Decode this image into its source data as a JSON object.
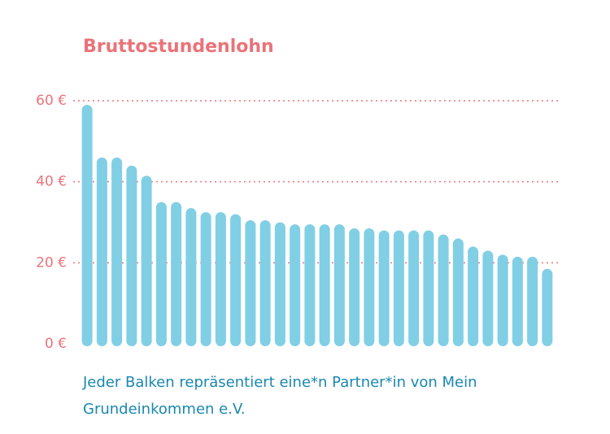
{
  "chart_data": {
    "type": "bar",
    "title": "Bruttostundenlohn",
    "categories": [
      null,
      null,
      null,
      null,
      null,
      null,
      null,
      null,
      null,
      null,
      null,
      null,
      null,
      null,
      null,
      null,
      null,
      null,
      null,
      null,
      null,
      null,
      null,
      null,
      null,
      null,
      null,
      null,
      null,
      null,
      null,
      null
    ],
    "values": [
      59,
      46,
      46,
      44,
      41.5,
      35,
      35,
      33.5,
      32.5,
      32.5,
      32,
      30.5,
      30.5,
      30,
      29.5,
      29.5,
      29.5,
      29.5,
      28.5,
      28.5,
      28,
      28,
      28,
      28,
      27,
      26,
      24,
      23,
      22,
      21.5,
      21.5,
      18.5
    ],
    "color": "#80cfe5",
    "ylim": [
      0,
      60
    ],
    "yticks": [
      {
        "value": 0,
        "label": "0 €"
      },
      {
        "value": 20,
        "label": "20 €"
      },
      {
        "value": 40,
        "label": "40 €"
      },
      {
        "value": 60,
        "label": "60 €"
      }
    ],
    "grid": true,
    "grid_color": "#ea7379",
    "footnote": "Jeder Balken repräsentiert eine*n Partner*in von Mein Grundeinkommen e.V."
  }
}
